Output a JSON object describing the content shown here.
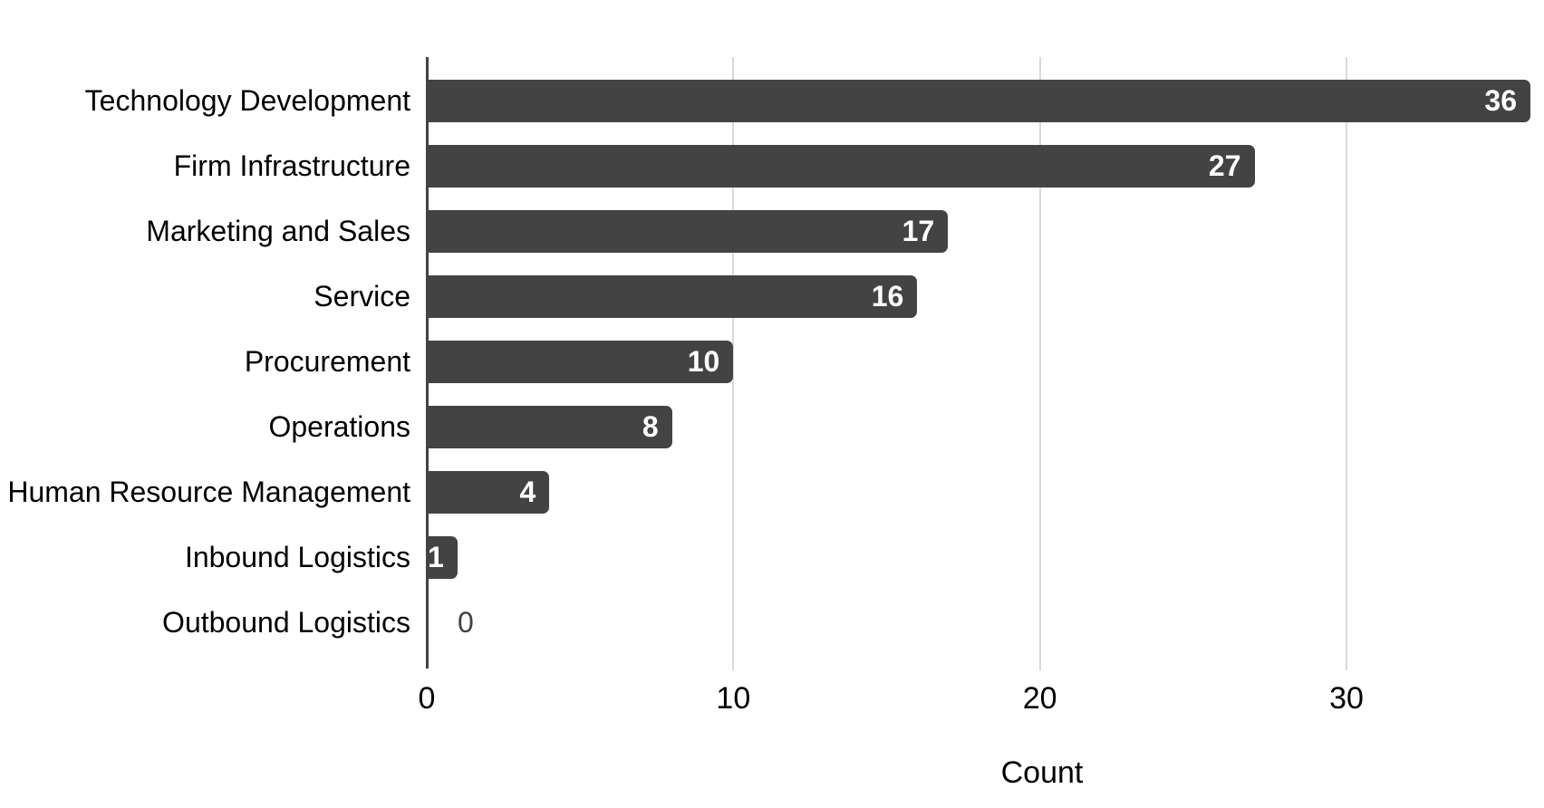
{
  "chart_data": {
    "type": "bar",
    "orientation": "horizontal",
    "title": "",
    "categories": [
      "Technology Development",
      "Firm Infrastructure",
      "Marketing and Sales",
      "Service",
      "Procurement",
      "Operations",
      "Human Resource Management",
      "Inbound Logistics",
      "Outbound Logistics"
    ],
    "values": [
      36,
      27,
      17,
      16,
      10,
      8,
      4,
      1,
      0
    ],
    "xlabel": "Count",
    "ylabel": "",
    "xlim": [
      0,
      36
    ],
    "xticks": [
      0,
      10,
      20,
      30
    ],
    "grid": "vertical-gridlines-on",
    "legend": "none",
    "colors": {
      "bar_fill": "#434343",
      "value_label_inside": "#ffffff",
      "value_label_zero": "#424242",
      "axis_baseline": "#434343",
      "gridline": "#d9d9d9",
      "text": "#000000",
      "background": "#ffffff"
    }
  }
}
